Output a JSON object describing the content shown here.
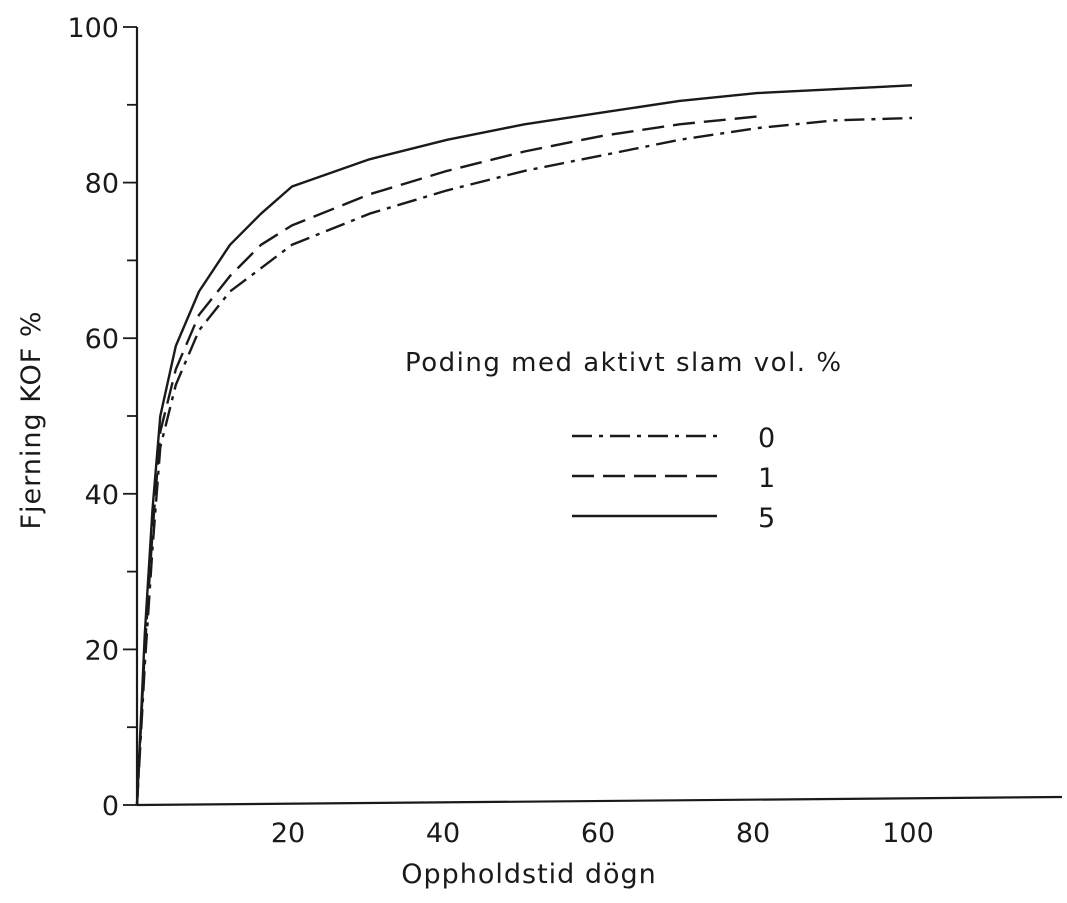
{
  "chart_data": {
    "type": "line",
    "title": "",
    "xlabel": "Oppholdstid dögn",
    "ylabel": "Fjerning KOF %",
    "xlim": [
      0,
      120
    ],
    "ylim": [
      0,
      100
    ],
    "x_ticks": [
      20,
      40,
      60,
      80,
      100
    ],
    "y_ticks": [
      0,
      20,
      40,
      60,
      80,
      100
    ],
    "grid": false,
    "legend_title": "Poding med aktivt slam vol. %",
    "legend_position": "center-right",
    "series": [
      {
        "name": "0",
        "style": "dash-dot",
        "x": [
          0,
          1,
          2,
          3,
          5,
          8,
          12,
          16,
          20,
          30,
          40,
          50,
          60,
          70,
          80,
          90,
          100
        ],
        "y": [
          0,
          18,
          33,
          46,
          54,
          61,
          66,
          69,
          72,
          76,
          79,
          81.5,
          83.5,
          85.5,
          87,
          88,
          88.3
        ]
      },
      {
        "name": "1",
        "style": "dashed",
        "x": [
          0,
          1,
          2,
          3,
          5,
          8,
          12,
          16,
          20,
          30,
          40,
          50,
          60,
          70,
          80
        ],
        "y": [
          0,
          20,
          35,
          48,
          56,
          63,
          68,
          72,
          74.5,
          78.5,
          81.5,
          84,
          86,
          87.5,
          88.5
        ]
      },
      {
        "name": "5",
        "style": "solid",
        "x": [
          0,
          1,
          2,
          3,
          5,
          8,
          12,
          16,
          20,
          30,
          40,
          50,
          60,
          70,
          80,
          90,
          100
        ],
        "y": [
          0,
          22,
          38,
          50,
          59,
          66,
          72,
          76,
          79.5,
          83,
          85.5,
          87.5,
          89,
          90.5,
          91.5,
          92,
          92.5
        ]
      }
    ],
    "colors": {
      "ink": "#1a1a1a",
      "background": "#ffffff"
    }
  }
}
